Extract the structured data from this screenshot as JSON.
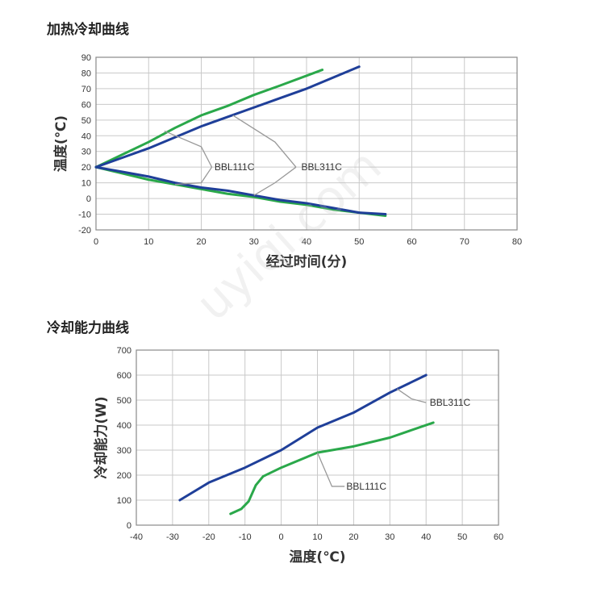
{
  "watermark": "uyiqi.com",
  "colors": {
    "green": "#2aa84a",
    "blue": "#1f3f99",
    "grid": "#c9c9c9",
    "frame": "#8a8a8a"
  },
  "chart_data": [
    {
      "type": "line",
      "title": "加热冷却曲线",
      "xlabel": "经过时间(分)",
      "ylabel": "温度(℃)",
      "xlim": [
        0,
        80
      ],
      "ylim": [
        -20,
        90
      ],
      "xticks": [
        0,
        10,
        20,
        30,
        40,
        50,
        60,
        70,
        80
      ],
      "yticks": [
        -20,
        -10,
        0,
        10,
        20,
        30,
        40,
        50,
        60,
        70,
        80,
        90
      ],
      "grid": true,
      "series": [
        {
          "name": "BBL111C",
          "color": "green",
          "x": [
            0,
            5,
            10,
            15,
            20,
            25,
            30,
            35,
            43
          ],
          "y": [
            20,
            28,
            36,
            45,
            53,
            59,
            66,
            72,
            82
          ]
        },
        {
          "name": "BBL311C",
          "color": "blue",
          "x": [
            0,
            5,
            10,
            15,
            20,
            25,
            30,
            35,
            40,
            50
          ],
          "y": [
            20,
            26,
            32,
            39,
            46,
            52,
            58,
            64,
            70,
            84
          ]
        },
        {
          "name": "BBL111C",
          "color": "green",
          "x": [
            0,
            5,
            10,
            15,
            20,
            25,
            30,
            35,
            40,
            45,
            50,
            55
          ],
          "y": [
            20,
            16,
            12,
            9,
            6,
            3,
            1,
            -2,
            -4,
            -7,
            -9,
            -11
          ]
        },
        {
          "name": "BBL311C",
          "color": "blue",
          "x": [
            0,
            5,
            10,
            15,
            20,
            25,
            30,
            35,
            40,
            45,
            50,
            55
          ],
          "y": [
            20,
            17,
            14,
            10,
            7,
            5,
            2,
            -1,
            -3,
            -6,
            -9,
            -10
          ]
        }
      ],
      "annotations": [
        {
          "text": "BBL111C",
          "at": [
            22.5,
            20
          ]
        },
        {
          "text": "BBL311C",
          "at": [
            39,
            20
          ]
        }
      ]
    },
    {
      "type": "line",
      "title": "冷却能力曲线",
      "xlabel": "温度(℃)",
      "ylabel": "冷却能力(W)",
      "xlim": [
        -40,
        60
      ],
      "ylim": [
        0,
        700
      ],
      "xticks": [
        -40,
        -30,
        -20,
        -10,
        0,
        10,
        20,
        30,
        40,
        50,
        60
      ],
      "yticks": [
        0,
        100,
        200,
        300,
        400,
        500,
        600,
        700
      ],
      "grid": true,
      "series": [
        {
          "name": "BBL311C",
          "color": "blue",
          "x": [
            -28,
            -20,
            -10,
            0,
            10,
            20,
            30,
            40
          ],
          "y": [
            100,
            170,
            230,
            300,
            390,
            450,
            530,
            600
          ]
        },
        {
          "name": "BBL111C",
          "color": "green",
          "x": [
            -14,
            -11,
            -9,
            -7,
            -5,
            0,
            10,
            20,
            30,
            42
          ],
          "y": [
            45,
            65,
            95,
            160,
            195,
            230,
            290,
            315,
            350,
            410
          ]
        }
      ],
      "annotations": [
        {
          "text": "BBL311C",
          "at": [
            41,
            490
          ]
        },
        {
          "text": "BBL111C",
          "at": [
            18,
            155
          ]
        }
      ]
    }
  ]
}
